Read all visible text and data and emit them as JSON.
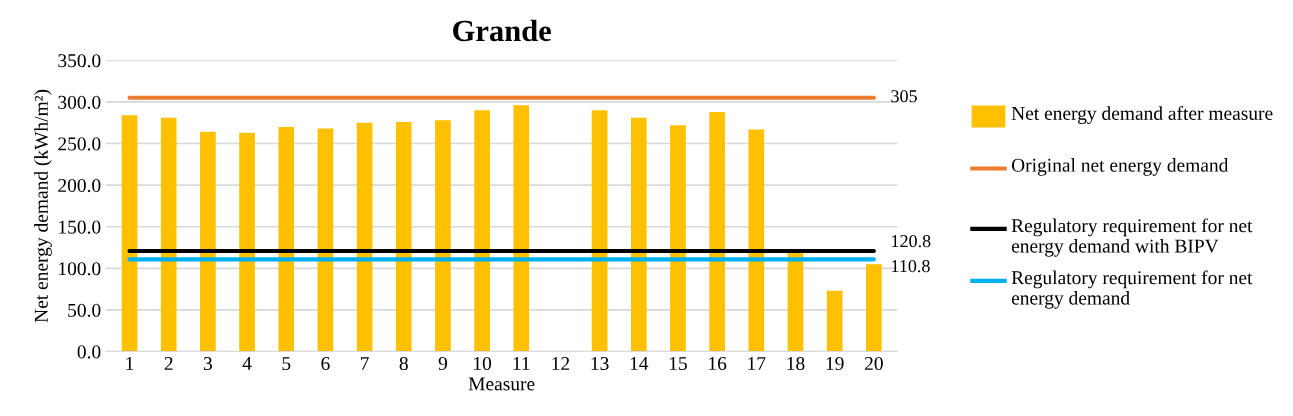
{
  "chart_data": {
    "type": "bar",
    "title": "Grande",
    "xlabel": "Measure",
    "ylabel": "Net energy demand (kWh/m²)",
    "categories": [
      "1",
      "2",
      "3",
      "4",
      "5",
      "6",
      "7",
      "8",
      "9",
      "10",
      "11",
      "12",
      "13",
      "14",
      "15",
      "16",
      "17",
      "18",
      "19",
      "20"
    ],
    "series": [
      {
        "name": "Net energy demand after measure",
        "color": "#ffc000",
        "values": [
          284,
          281,
          264,
          263,
          270,
          268,
          275,
          276,
          278,
          290,
          296,
          null,
          290,
          281,
          272,
          288,
          267,
          120,
          73,
          105
        ]
      },
      {
        "name": "Original net energy demand",
        "type": "line",
        "color": "#ed7d31",
        "values": [
          305,
          305,
          305,
          305,
          305,
          305,
          305,
          305,
          305,
          305,
          305,
          305,
          305,
          305,
          305,
          305,
          305,
          305,
          305,
          305
        ],
        "value_labels": [
          null,
          null,
          null,
          null,
          null,
          null,
          null,
          null,
          null,
          null,
          null,
          null,
          null,
          null,
          null,
          null,
          null,
          null,
          null,
          "305"
        ]
      },
      {
        "name": "Regulatory requirement for net energy demand with BIPV",
        "type": "line",
        "color": "#000000",
        "values": [
          120.8,
          120.8,
          120.8,
          120.8,
          120.8,
          120.8,
          120.8,
          120.8,
          120.8,
          120.8,
          120.8,
          120.8,
          120.8,
          120.8,
          120.8,
          120.8,
          120.8,
          120.8,
          120.8,
          120.8
        ],
        "value_labels": [
          null,
          null,
          null,
          null,
          null,
          null,
          null,
          null,
          null,
          null,
          null,
          null,
          null,
          null,
          null,
          null,
          null,
          null,
          null,
          "120.8"
        ]
      },
      {
        "name": "Regulatory requirement for net energy demand",
        "type": "line",
        "color": "#00b0f0",
        "values": [
          110.8,
          110.8,
          110.8,
          110.8,
          110.8,
          110.8,
          110.8,
          110.8,
          110.8,
          110.8,
          110.8,
          110.8,
          110.8,
          110.8,
          110.8,
          110.8,
          110.8,
          110.8,
          110.8,
          110.8
        ],
        "value_labels": [
          null,
          null,
          null,
          null,
          null,
          null,
          null,
          null,
          null,
          null,
          null,
          null,
          null,
          null,
          null,
          null,
          null,
          null,
          null,
          "110.8"
        ]
      }
    ],
    "ylim": [
      0,
      350
    ],
    "yticks": [
      {
        "value": 0,
        "label": "0.0"
      },
      {
        "value": 50,
        "label": "50.0"
      },
      {
        "value": 100,
        "label": "100.0"
      },
      {
        "value": 150,
        "label": "150.0"
      },
      {
        "value": 200,
        "label": "200.0"
      },
      {
        "value": 250,
        "label": "250.0"
      },
      {
        "value": 300,
        "label": "300.0"
      },
      {
        "value": 350,
        "label": "350.0"
      }
    ],
    "grid": "y",
    "legend": "right",
    "marker": "none",
    "line_style": "solid"
  }
}
